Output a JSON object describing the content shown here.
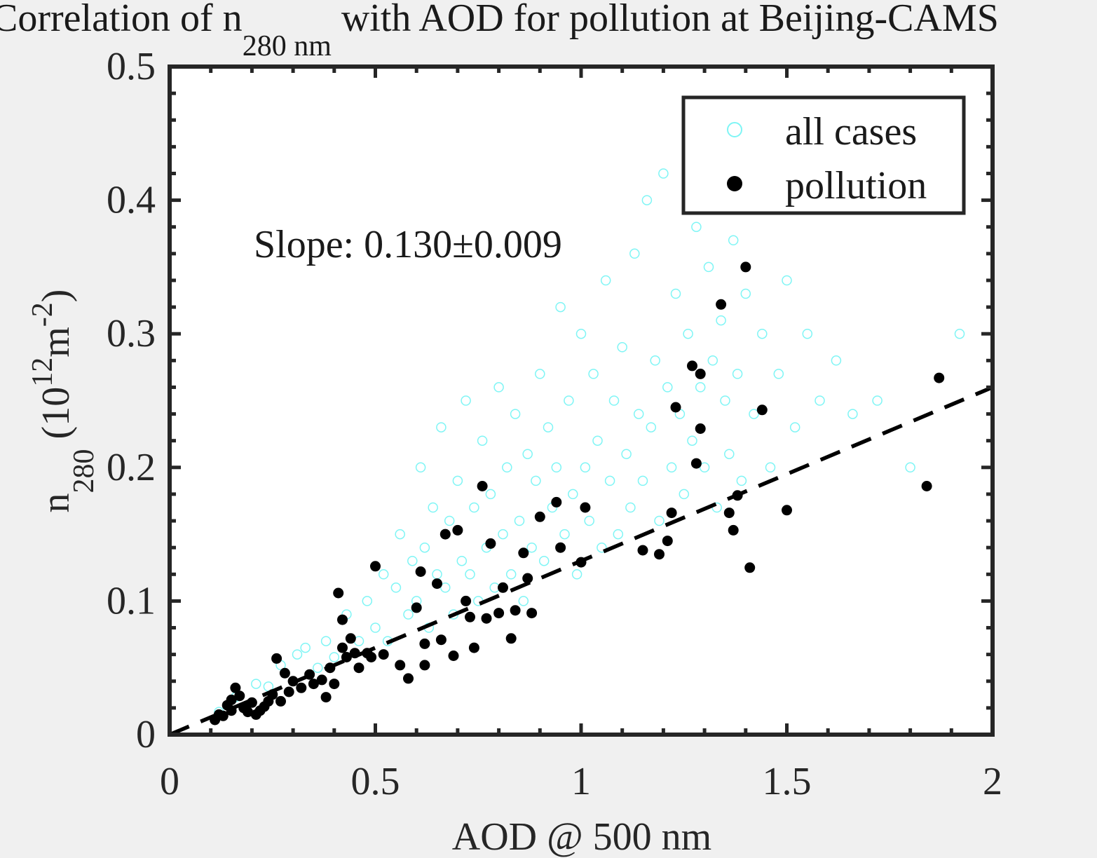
{
  "chart_data": {
    "type": "scatter",
    "title": {
      "prefix": "Correlation of n",
      "subscript": "280 nm",
      "suffix": " with AOD for pollution at Beijing-CAMS"
    },
    "xlabel": "AOD @ 500 nm",
    "ylabel": {
      "main": "n",
      "subscript": "280",
      "unit_open": " (10",
      "unit_sup1": "12",
      "unit_mid": "m",
      "unit_sup2": "-2",
      "unit_close": ")"
    },
    "xlim": [
      0,
      2
    ],
    "ylim": [
      0,
      0.5
    ],
    "xticks": [
      0,
      0.5,
      1,
      1.5,
      2
    ],
    "xtick_labels": [
      "0",
      "0.5",
      "1",
      "1.5",
      "2"
    ],
    "yticks": [
      0,
      0.1,
      0.2,
      0.3,
      0.4,
      0.5
    ],
    "ytick_labels": [
      "0",
      "0.1",
      "0.2",
      "0.3",
      "0.4",
      "0.5"
    ],
    "grid": false,
    "legend": {
      "position": "top-right",
      "entries": [
        "all cases",
        "pollution"
      ]
    },
    "annotation": "Slope: 0.130±0.009",
    "colors": {
      "all_cases": "#7ff5f5",
      "pollution": "#000000",
      "fit": "#000000",
      "background": "#f0f0f0"
    },
    "series": [
      {
        "name": "pollution",
        "marker": "filled-circle",
        "x": [
          0.11,
          0.12,
          0.13,
          0.14,
          0.15,
          0.15,
          0.16,
          0.17,
          0.18,
          0.19,
          0.2,
          0.21,
          0.22,
          0.23,
          0.24,
          0.25,
          0.26,
          0.27,
          0.28,
          0.29,
          0.3,
          0.32,
          0.34,
          0.35,
          0.37,
          0.38,
          0.39,
          0.4,
          0.41,
          0.42,
          0.42,
          0.43,
          0.44,
          0.45,
          0.46,
          0.48,
          0.49,
          0.5,
          0.52,
          0.56,
          0.58,
          0.6,
          0.61,
          0.62,
          0.62,
          0.65,
          0.66,
          0.67,
          0.69,
          0.7,
          0.72,
          0.73,
          0.74,
          0.76,
          0.77,
          0.78,
          0.8,
          0.81,
          0.83,
          0.84,
          0.86,
          0.87,
          0.88,
          0.9,
          0.94,
          0.95,
          1.0,
          1.01,
          1.15,
          1.19,
          1.21,
          1.22,
          1.23,
          1.27,
          1.28,
          1.29,
          1.29,
          1.34,
          1.36,
          1.37,
          1.38,
          1.4,
          1.41,
          1.44,
          1.5,
          1.84,
          1.87
        ],
        "y": [
          0.011,
          0.015,
          0.014,
          0.022,
          0.018,
          0.026,
          0.035,
          0.029,
          0.02,
          0.017,
          0.024,
          0.015,
          0.018,
          0.021,
          0.025,
          0.03,
          0.057,
          0.025,
          0.046,
          0.032,
          0.04,
          0.035,
          0.045,
          0.038,
          0.041,
          0.028,
          0.05,
          0.038,
          0.106,
          0.086,
          0.065,
          0.058,
          0.072,
          0.061,
          0.05,
          0.061,
          0.058,
          0.126,
          0.06,
          0.052,
          0.042,
          0.095,
          0.122,
          0.068,
          0.052,
          0.113,
          0.071,
          0.15,
          0.059,
          0.153,
          0.1,
          0.088,
          0.065,
          0.186,
          0.087,
          0.143,
          0.091,
          0.11,
          0.072,
          0.093,
          0.136,
          0.117,
          0.091,
          0.163,
          0.174,
          0.14,
          0.129,
          0.17,
          0.138,
          0.135,
          0.145,
          0.166,
          0.245,
          0.276,
          0.203,
          0.27,
          0.229,
          0.322,
          0.166,
          0.153,
          0.179,
          0.35,
          0.125,
          0.243,
          0.168,
          0.186,
          0.267
        ]
      },
      {
        "name": "all cases",
        "marker": "open-circle",
        "x": [
          0.12,
          0.16,
          0.21,
          0.24,
          0.27,
          0.31,
          0.33,
          0.36,
          0.38,
          0.4,
          0.43,
          0.46,
          0.48,
          0.5,
          0.52,
          0.53,
          0.55,
          0.56,
          0.58,
          0.59,
          0.6,
          0.61,
          0.62,
          0.63,
          0.64,
          0.65,
          0.66,
          0.67,
          0.68,
          0.69,
          0.7,
          0.71,
          0.72,
          0.73,
          0.74,
          0.75,
          0.76,
          0.77,
          0.78,
          0.79,
          0.8,
          0.81,
          0.82,
          0.83,
          0.84,
          0.85,
          0.86,
          0.87,
          0.88,
          0.89,
          0.9,
          0.91,
          0.92,
          0.93,
          0.94,
          0.95,
          0.96,
          0.97,
          0.98,
          0.99,
          1.0,
          1.01,
          1.02,
          1.03,
          1.04,
          1.05,
          1.06,
          1.07,
          1.08,
          1.09,
          1.1,
          1.11,
          1.12,
          1.13,
          1.14,
          1.15,
          1.16,
          1.17,
          1.18,
          1.19,
          1.2,
          1.21,
          1.22,
          1.23,
          1.24,
          1.25,
          1.26,
          1.27,
          1.28,
          1.29,
          1.3,
          1.31,
          1.32,
          1.33,
          1.34,
          1.35,
          1.36,
          1.37,
          1.38,
          1.39,
          1.4,
          1.42,
          1.44,
          1.46,
          1.48,
          1.5,
          1.52,
          1.55,
          1.58,
          1.62,
          1.66,
          1.72,
          1.8,
          1.92
        ],
        "y": [
          0.017,
          0.028,
          0.038,
          0.036,
          0.052,
          0.06,
          0.065,
          0.05,
          0.07,
          0.058,
          0.09,
          0.07,
          0.1,
          0.08,
          0.12,
          0.07,
          0.11,
          0.15,
          0.09,
          0.13,
          0.1,
          0.2,
          0.14,
          0.08,
          0.17,
          0.12,
          0.23,
          0.11,
          0.16,
          0.09,
          0.19,
          0.13,
          0.25,
          0.12,
          0.17,
          0.1,
          0.22,
          0.14,
          0.18,
          0.11,
          0.26,
          0.15,
          0.2,
          0.12,
          0.24,
          0.16,
          0.1,
          0.21,
          0.14,
          0.19,
          0.27,
          0.13,
          0.23,
          0.17,
          0.2,
          0.32,
          0.15,
          0.25,
          0.18,
          0.12,
          0.3,
          0.2,
          0.16,
          0.27,
          0.22,
          0.14,
          0.34,
          0.19,
          0.25,
          0.15,
          0.29,
          0.21,
          0.17,
          0.36,
          0.24,
          0.19,
          0.4,
          0.23,
          0.28,
          0.16,
          0.42,
          0.26,
          0.2,
          0.33,
          0.24,
          0.18,
          0.3,
          0.22,
          0.38,
          0.26,
          0.2,
          0.35,
          0.28,
          0.17,
          0.31,
          0.25,
          0.21,
          0.37,
          0.27,
          0.19,
          0.33,
          0.24,
          0.3,
          0.2,
          0.27,
          0.34,
          0.23,
          0.3,
          0.25,
          0.28,
          0.24,
          0.25,
          0.2,
          0.3
        ]
      }
    ],
    "fit": {
      "name": "fit",
      "slope": 0.13,
      "intercept": 0,
      "x_range": [
        0,
        2
      ]
    }
  }
}
